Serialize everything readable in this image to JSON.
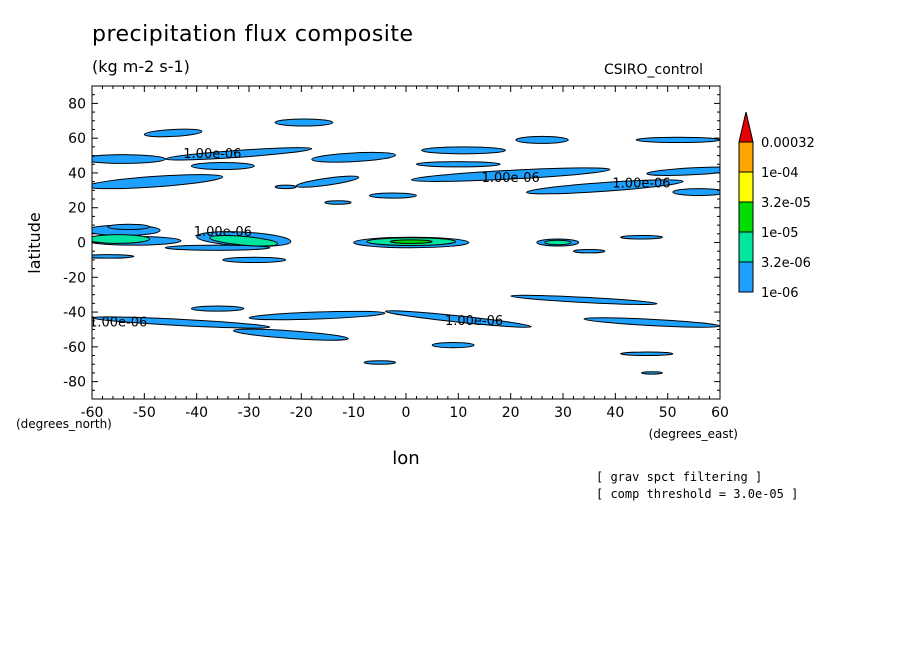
{
  "title": "precipitation flux composite",
  "units": "(kg m-2 s-1)",
  "run_label": "CSIRO_control",
  "notes": [
    "[ grav spct filtering ]",
    "[ comp threshold = 3.0e-05 ]"
  ],
  "chart_data": {
    "type": "contour",
    "xlabel": "lon",
    "ylabel": "latitude",
    "x_unit_label": "(degrees_east)",
    "y_unit_label": "(degrees_north)",
    "xlim": [
      -60,
      60
    ],
    "ylim": [
      -90,
      90
    ],
    "x_ticks": [
      -60,
      -50,
      -40,
      -30,
      -20,
      -10,
      0,
      10,
      20,
      30,
      40,
      50,
      60
    ],
    "y_ticks": [
      -80,
      -60,
      -40,
      -20,
      0,
      20,
      40,
      60,
      80
    ],
    "colorbar": {
      "levels": [
        "0.00032",
        "1e-04",
        "3.2e-05",
        "1e-05",
        "3.2e-06",
        "1e-06"
      ],
      "colors": [
        "#ffa500",
        "#ffff00",
        "#00dd00",
        "#00e6a0",
        "#1ea0ff"
      ],
      "extend_color": "#e60000"
    },
    "contour_labels": [
      {
        "text": "1.00e-06",
        "lon": -37,
        "lat": 51
      },
      {
        "text": "1.00e-06",
        "lon": 20,
        "lat": 37
      },
      {
        "text": "1.00e-06",
        "lon": 45,
        "lat": 34
      },
      {
        "text": "1.00e-06",
        "lon": -35,
        "lat": 6
      },
      {
        "text": "1.00e-06",
        "lon": -55,
        "lat": -46
      },
      {
        "text": "1.00e-06",
        "lon": 13,
        "lat": -45
      }
    ],
    "regions": [
      {
        "lon": -44.5,
        "lat": 63,
        "dlon": 5.5,
        "dlat": 2,
        "rot": -3,
        "level": "1e-06"
      },
      {
        "lon": -19.5,
        "lat": 69,
        "dlon": 5.5,
        "dlat": 2,
        "rot": 0,
        "level": "1e-06"
      },
      {
        "lon": -54,
        "lat": 48,
        "dlon": 8,
        "dlat": 2.5,
        "rot": 0,
        "level": "1e-06"
      },
      {
        "lon": -32,
        "lat": 51,
        "dlon": 14,
        "dlat": 2,
        "rot": -4,
        "level": "1e-06"
      },
      {
        "lon": -35,
        "lat": 44,
        "dlon": 6,
        "dlat": 2,
        "rot": 0,
        "level": "1e-06"
      },
      {
        "lon": -48,
        "lat": 35,
        "dlon": 13,
        "dlat": 3,
        "rot": -4,
        "level": "1e-06"
      },
      {
        "lon": -10,
        "lat": 49,
        "dlon": 8,
        "dlat": 2.5,
        "rot": -3,
        "level": "1e-06"
      },
      {
        "lon": 11,
        "lat": 53,
        "dlon": 8,
        "dlat": 2,
        "rot": 0,
        "level": "1e-06"
      },
      {
        "lon": 26,
        "lat": 59,
        "dlon": 5,
        "dlat": 2,
        "rot": 0,
        "level": "1e-06"
      },
      {
        "lon": 52,
        "lat": 59,
        "dlon": 8,
        "dlat": 1.5,
        "rot": 0,
        "level": "1e-06"
      },
      {
        "lon": 10,
        "lat": 45,
        "dlon": 8,
        "dlat": 1.5,
        "rot": 0,
        "level": "1e-06"
      },
      {
        "lon": 20,
        "lat": 39,
        "dlon": 19,
        "dlat": 2.5,
        "rot": -3,
        "level": "1e-06"
      },
      {
        "lon": 55,
        "lat": 41,
        "dlon": 9,
        "dlat": 2,
        "rot": -3,
        "level": "1e-06"
      },
      {
        "lon": 38,
        "lat": 32,
        "dlon": 15,
        "dlat": 2.5,
        "rot": -4,
        "level": "1e-06"
      },
      {
        "lon": 56,
        "lat": 29,
        "dlon": 5,
        "dlat": 2,
        "rot": 0,
        "level": "1e-06"
      },
      {
        "lon": -15,
        "lat": 35,
        "dlon": 6,
        "dlat": 2,
        "rot": -8,
        "level": "1e-06"
      },
      {
        "lon": -2.5,
        "lat": 27,
        "dlon": 4.5,
        "dlat": 1.5,
        "rot": 0,
        "level": "1e-06"
      },
      {
        "lon": -23,
        "lat": 32,
        "dlon": 2,
        "dlat": 1,
        "rot": 0,
        "level": "1e-06"
      },
      {
        "lon": -13,
        "lat": 23,
        "dlon": 2.5,
        "dlat": 1,
        "rot": 0,
        "level": "1e-06"
      },
      {
        "lon": -54,
        "lat": 7,
        "dlon": 7,
        "dlat": 3,
        "rot": 0,
        "level": "1e-06"
      },
      {
        "lon": -52,
        "lat": 1,
        "dlon": 9,
        "dlat": 2.5,
        "rot": 0,
        "level": "1e-06"
      },
      {
        "lon": -53,
        "lat": 9,
        "dlon": 4,
        "dlat": 1.5,
        "rot": 0,
        "level": "1e-06"
      },
      {
        "lon": -57,
        "lat": -8,
        "dlon": 5,
        "dlat": 1,
        "rot": 0,
        "level": "1e-06"
      },
      {
        "lon": -31,
        "lat": 2,
        "dlon": 9,
        "dlat": 4,
        "rot": 3,
        "level": "1e-06"
      },
      {
        "lon": -36,
        "lat": -3,
        "dlon": 10,
        "dlat": 1.5,
        "rot": 0,
        "level": "1e-06"
      },
      {
        "lon": -29,
        "lat": -10,
        "dlon": 6,
        "dlat": 1.5,
        "rot": 0,
        "level": "1e-06"
      },
      {
        "lon": 1,
        "lat": 0,
        "dlon": 11,
        "dlat": 3,
        "rot": 0,
        "level": "1e-06"
      },
      {
        "lon": 29,
        "lat": 0,
        "dlon": 4,
        "dlat": 2,
        "rot": 0,
        "level": "1e-06"
      },
      {
        "lon": 45,
        "lat": 3,
        "dlon": 4,
        "dlat": 1,
        "rot": 0,
        "level": "1e-06"
      },
      {
        "lon": 35,
        "lat": -5,
        "dlon": 3,
        "dlat": 1,
        "rot": 0,
        "level": "1e-06"
      },
      {
        "lon": 34,
        "lat": -33,
        "dlon": 14,
        "dlat": 1.5,
        "rot": 3,
        "level": "1e-06"
      },
      {
        "lon": -43,
        "lat": -46,
        "dlon": 17,
        "dlat": 1.8,
        "rot": 3,
        "level": "1e-06"
      },
      {
        "lon": -36,
        "lat": -38,
        "dlon": 5,
        "dlat": 1.5,
        "rot": 0,
        "level": "1e-06"
      },
      {
        "lon": -17,
        "lat": -42,
        "dlon": 13,
        "dlat": 2,
        "rot": -2,
        "level": "1e-06"
      },
      {
        "lon": -22,
        "lat": -53,
        "dlon": 11,
        "dlat": 2.2,
        "rot": 4,
        "level": "1e-06"
      },
      {
        "lon": 10,
        "lat": -44,
        "dlon": 14,
        "dlat": 1.8,
        "rot": 6,
        "level": "1e-06"
      },
      {
        "lon": 47,
        "lat": -46,
        "dlon": 13,
        "dlat": 1.8,
        "rot": 3,
        "level": "1e-06"
      },
      {
        "lon": 9,
        "lat": -59,
        "dlon": 4,
        "dlat": 1.5,
        "rot": 0,
        "level": "1e-06"
      },
      {
        "lon": 46,
        "lat": -64,
        "dlon": 5,
        "dlat": 1,
        "rot": 0,
        "level": "1e-06"
      },
      {
        "lon": -5,
        "lat": -69,
        "dlon": 3,
        "dlat": 1,
        "rot": 0,
        "level": "1e-06"
      },
      {
        "lon": 47,
        "lat": -75,
        "dlon": 2,
        "dlat": 0.7,
        "rot": 0,
        "level": "1e-06"
      },
      {
        "lon": -55,
        "lat": 2,
        "dlon": 6,
        "dlat": 2.5,
        "rot": 0,
        "level": "3.2e-06"
      },
      {
        "lon": -31,
        "lat": 1,
        "dlon": 6.5,
        "dlat": 2.5,
        "rot": 5,
        "level": "3.2e-06"
      },
      {
        "lon": 1,
        "lat": 0.5,
        "dlon": 8.5,
        "dlat": 2.2,
        "rot": 0,
        "level": "3.2e-06"
      },
      {
        "lon": 29,
        "lat": 0,
        "dlon": 2.5,
        "dlat": 1.3,
        "rot": 0,
        "level": "3.2e-06"
      },
      {
        "lon": 1,
        "lat": 0.5,
        "dlon": 4,
        "dlat": 1,
        "rot": 0,
        "level": "1e-05"
      }
    ]
  }
}
